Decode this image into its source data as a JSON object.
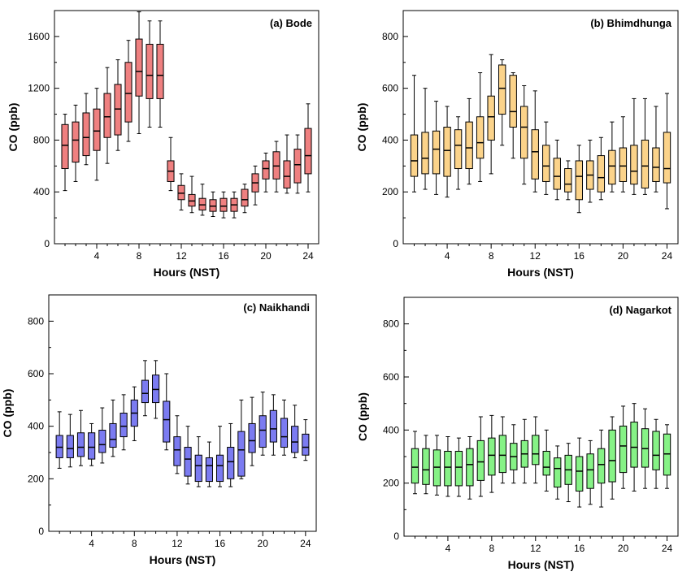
{
  "chart_data": [
    {
      "type": "box",
      "title": "(a) Bode",
      "xlabel": "Hours (NST)",
      "ylabel": "CO (ppb)",
      "ylim": [
        0,
        1800
      ],
      "yticks": [
        0,
        400,
        800,
        1200,
        1600
      ],
      "xticks": [
        4,
        8,
        12,
        16,
        20,
        24
      ],
      "color": "#ef8080",
      "hours": [
        1,
        2,
        3,
        4,
        5,
        6,
        7,
        8,
        9,
        10,
        11,
        12,
        13,
        14,
        15,
        16,
        17,
        18,
        19,
        20,
        21,
        22,
        23,
        24
      ],
      "whisker_low": [
        410,
        480,
        610,
        490,
        620,
        720,
        790,
        850,
        900,
        900,
        410,
        260,
        240,
        220,
        210,
        200,
        200,
        240,
        300,
        400,
        400,
        390,
        390,
        400
      ],
      "q1": [
        580,
        630,
        680,
        720,
        820,
        840,
        940,
        1140,
        1120,
        1120,
        480,
        340,
        290,
        260,
        250,
        250,
        250,
        290,
        400,
        500,
        500,
        430,
        470,
        540
      ],
      "median": [
        760,
        800,
        820,
        870,
        980,
        1040,
        1160,
        1330,
        1300,
        1300,
        560,
        390,
        330,
        300,
        290,
        290,
        300,
        340,
        470,
        580,
        600,
        520,
        610,
        680
      ],
      "q3": [
        920,
        940,
        1010,
        1040,
        1160,
        1230,
        1400,
        1580,
        1540,
        1540,
        640,
        450,
        380,
        350,
        340,
        350,
        350,
        420,
        540,
        640,
        710,
        640,
        730,
        890
      ],
      "whisker_high": [
        1000,
        1070,
        1160,
        1200,
        1360,
        1420,
        1570,
        1790,
        1720,
        1720,
        820,
        540,
        520,
        460,
        400,
        400,
        400,
        460,
        600,
        700,
        790,
        840,
        840,
        1080
      ]
    },
    {
      "type": "box",
      "title": "(b) Bhimdhunga",
      "xlabel": "Hours (NST)",
      "ylabel": "CO (ppb)",
      "ylim": [
        0,
        900
      ],
      "yticks": [
        0,
        200,
        400,
        600,
        800
      ],
      "xticks": [
        4,
        8,
        12,
        16,
        20,
        24
      ],
      "color": "#fbd38a",
      "hours": [
        1,
        2,
        3,
        4,
        5,
        6,
        7,
        8,
        9,
        10,
        11,
        12,
        13,
        14,
        15,
        16,
        17,
        18,
        19,
        20,
        21,
        22,
        23,
        24
      ],
      "whisker_low": [
        200,
        210,
        190,
        180,
        210,
        230,
        240,
        270,
        380,
        330,
        230,
        200,
        190,
        170,
        170,
        120,
        160,
        170,
        200,
        200,
        190,
        190,
        200,
        135
      ],
      "q1": [
        260,
        270,
        270,
        260,
        290,
        290,
        330,
        400,
        500,
        450,
        330,
        250,
        240,
        210,
        200,
        170,
        210,
        200,
        230,
        240,
        230,
        215,
        240,
        235
      ],
      "median": [
        320,
        330,
        365,
        360,
        380,
        370,
        390,
        490,
        600,
        510,
        450,
        355,
        300,
        260,
        230,
        260,
        265,
        255,
        300,
        300,
        280,
        300,
        295,
        290
      ],
      "q3": [
        420,
        430,
        435,
        450,
        440,
        470,
        490,
        570,
        690,
        650,
        530,
        440,
        380,
        330,
        290,
        320,
        320,
        340,
        360,
        370,
        380,
        400,
        370,
        430
      ],
      "whisker_high": [
        650,
        600,
        550,
        530,
        490,
        560,
        660,
        730,
        710,
        660,
        610,
        590,
        470,
        400,
        320,
        380,
        400,
        410,
        470,
        490,
        560,
        560,
        530,
        580
      ]
    },
    {
      "type": "box",
      "title": "(c) Naikhandi",
      "xlabel": "Hours (NST)",
      "ylabel": "CO (ppb)",
      "ylim": [
        0,
        900
      ],
      "yticks": [
        0,
        200,
        400,
        600,
        800
      ],
      "xticks": [
        4,
        8,
        12,
        16,
        20,
        24
      ],
      "color": "#7b7bf1",
      "hours": [
        1,
        2,
        3,
        4,
        5,
        6,
        7,
        8,
        9,
        10,
        11,
        12,
        13,
        14,
        15,
        16,
        17,
        18,
        19,
        20,
        21,
        22,
        23,
        24
      ],
      "whisker_low": [
        240,
        245,
        250,
        250,
        260,
        285,
        310,
        345,
        440,
        430,
        310,
        220,
        180,
        170,
        170,
        170,
        170,
        200,
        250,
        290,
        290,
        290,
        280,
        270
      ],
      "q1": [
        280,
        280,
        285,
        275,
        300,
        320,
        360,
        400,
        490,
        490,
        340,
        250,
        210,
        190,
        190,
        190,
        200,
        210,
        300,
        320,
        340,
        320,
        300,
        290
      ],
      "median": [
        320,
        315,
        320,
        320,
        330,
        350,
        400,
        450,
        525,
        540,
        425,
        310,
        275,
        250,
        250,
        250,
        265,
        310,
        345,
        385,
        390,
        360,
        340,
        320
      ],
      "q3": [
        365,
        365,
        375,
        375,
        385,
        410,
        450,
        500,
        575,
        595,
        495,
        360,
        320,
        290,
        280,
        290,
        320,
        380,
        410,
        440,
        460,
        430,
        400,
        370
      ],
      "whisker_high": [
        455,
        445,
        460,
        410,
        470,
        500,
        520,
        550,
        650,
        650,
        600,
        440,
        400,
        360,
        340,
        400,
        410,
        500,
        510,
        530,
        520,
        500,
        480,
        425
      ]
    },
    {
      "type": "box",
      "title": "(d) Nagarkot",
      "xlabel": "Hours (NST)",
      "ylabel": "CO (ppb)",
      "ylim": [
        0,
        900
      ],
      "yticks": [
        0,
        200,
        400,
        600,
        800
      ],
      "xticks": [
        4,
        8,
        12,
        16,
        20,
        24
      ],
      "color": "#86f286",
      "hours": [
        1,
        2,
        3,
        4,
        5,
        6,
        7,
        8,
        9,
        10,
        11,
        12,
        13,
        14,
        15,
        16,
        17,
        18,
        19,
        20,
        21,
        22,
        23,
        24
      ],
      "whisker_low": [
        160,
        160,
        155,
        150,
        150,
        140,
        150,
        165,
        200,
        200,
        200,
        200,
        170,
        140,
        130,
        110,
        120,
        110,
        140,
        180,
        170,
        180,
        180,
        180
      ],
      "q1": [
        200,
        195,
        190,
        190,
        190,
        190,
        210,
        230,
        240,
        250,
        260,
        270,
        230,
        185,
        195,
        170,
        180,
        200,
        205,
        240,
        260,
        260,
        250,
        230
      ],
      "median": [
        260,
        250,
        260,
        260,
        260,
        270,
        280,
        305,
        305,
        300,
        310,
        310,
        260,
        255,
        250,
        245,
        250,
        270,
        285,
        340,
        335,
        330,
        305,
        310
      ],
      "q3": [
        330,
        330,
        325,
        320,
        320,
        330,
        360,
        370,
        380,
        350,
        360,
        380,
        320,
        295,
        305,
        300,
        310,
        330,
        400,
        415,
        430,
        405,
        395,
        385
      ],
      "whisker_high": [
        395,
        380,
        380,
        375,
        370,
        375,
        450,
        455,
        450,
        420,
        440,
        450,
        400,
        340,
        350,
        370,
        360,
        400,
        450,
        490,
        500,
        480,
        440,
        420
      ]
    }
  ]
}
